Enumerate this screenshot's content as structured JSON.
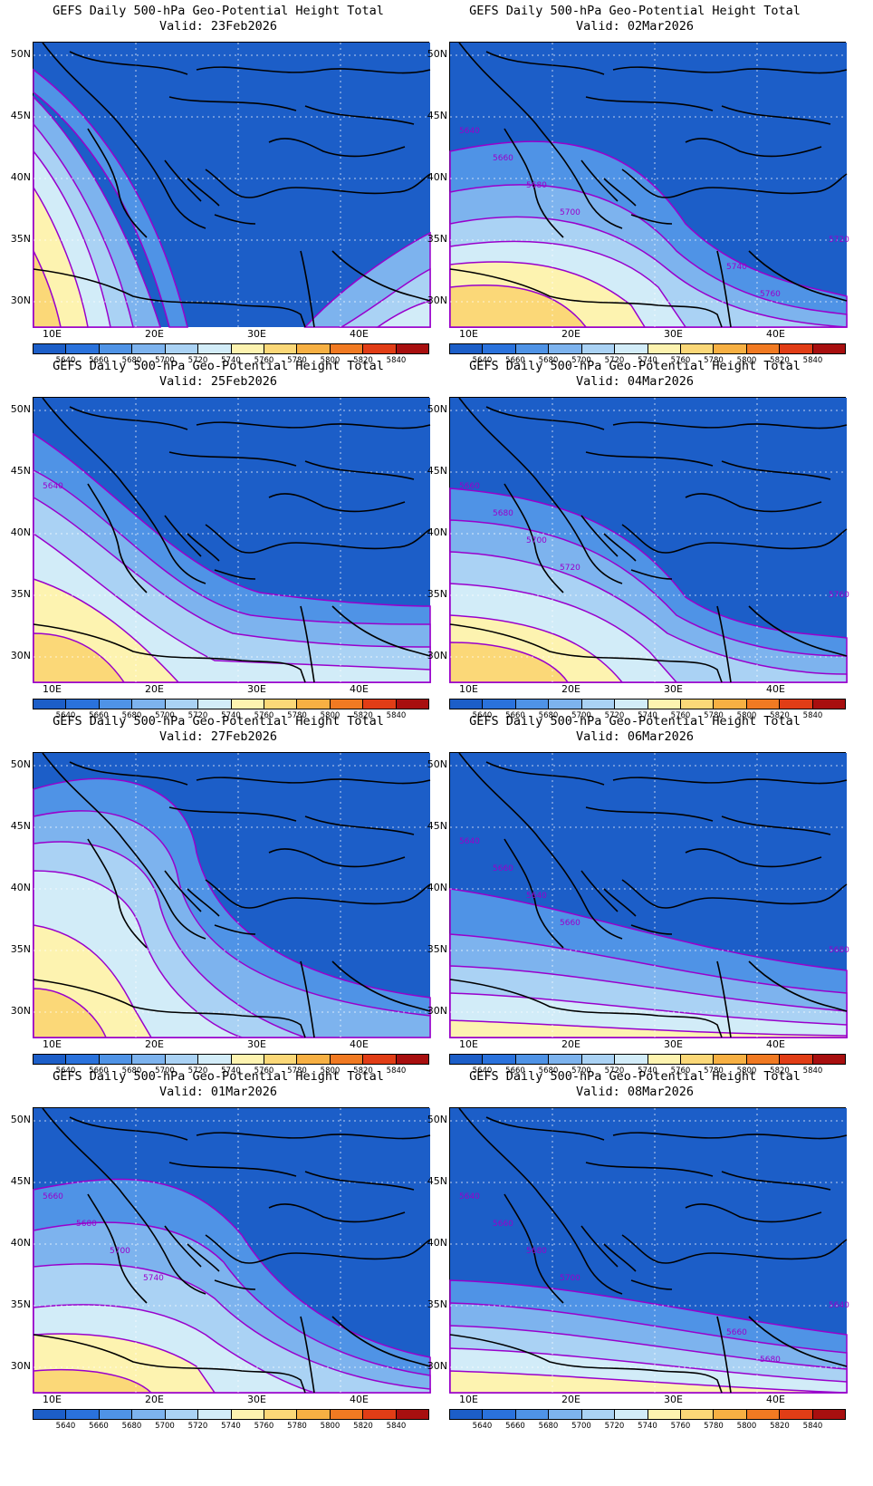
{
  "product_title": "GEFS Daily 500-hPa Geo-Potential Height Total",
  "valid_prefix": "Valid:",
  "lat_labels": [
    "50N",
    "45N",
    "40N",
    "35N",
    "30N"
  ],
  "lon_labels": [
    "10E",
    "20E",
    "30E",
    "40E"
  ],
  "colorbar": {
    "labels": [
      "5640",
      "5660",
      "5680",
      "5700",
      "5720",
      "5740",
      "5760",
      "5780",
      "5800",
      "5820",
      "5840"
    ],
    "colors": [
      "#1c5ec8",
      "#2a72dc",
      "#4f93e6",
      "#7db3ee",
      "#aad2f4",
      "#d2ecf8",
      "#fdf3b0",
      "#fbd878",
      "#f7b043",
      "#f17a22",
      "#e13d16",
      "#a80f0f"
    ]
  },
  "contour_color": "#9900cc",
  "panels": [
    {
      "id": "p1",
      "valid": "23Feb2026",
      "contour_labels": []
    },
    {
      "id": "p2",
      "valid": "02Mar2026",
      "contour_labels": [
        "5640",
        "5660",
        "5680",
        "5700",
        "5720",
        "5740",
        "5760"
      ]
    },
    {
      "id": "p3",
      "valid": "25Feb2026",
      "contour_labels": [
        "5640"
      ]
    },
    {
      "id": "p4",
      "valid": "04Mar2026",
      "contour_labels": [
        "5660",
        "5680",
        "5700",
        "5720",
        "5760"
      ]
    },
    {
      "id": "p5",
      "valid": "27Feb2026",
      "contour_labels": []
    },
    {
      "id": "p6",
      "valid": "06Mar2026",
      "contour_labels": [
        "5640",
        "5660",
        "5640",
        "5660",
        "5680"
      ]
    },
    {
      "id": "p7",
      "valid": "01Mar2026",
      "contour_labels": [
        "5660",
        "5680",
        "5700",
        "5740"
      ]
    },
    {
      "id": "p8",
      "valid": "08Mar2026",
      "contour_labels": [
        "5640",
        "5660",
        "5680",
        "5700",
        "5640",
        "5660",
        "5680"
      ]
    }
  ]
}
